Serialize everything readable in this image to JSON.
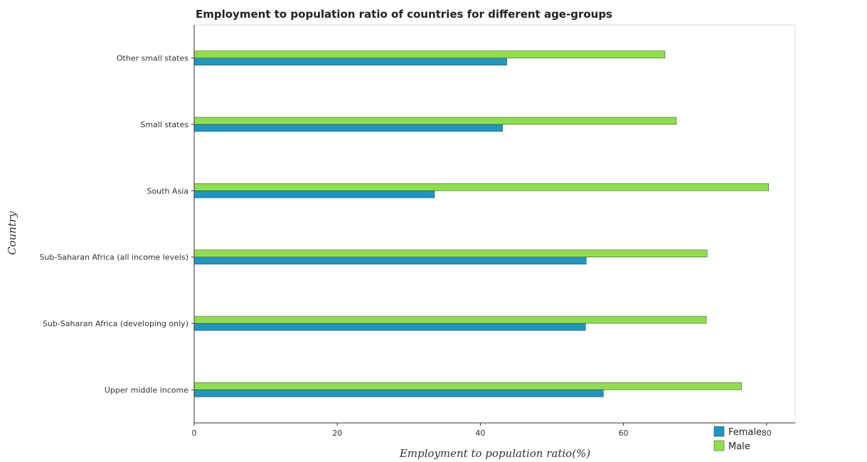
{
  "chart_data": {
    "type": "bar",
    "orientation": "horizontal",
    "title": "Employment to population ratio of countries for different age-groups",
    "xlabel": "Employment to population ratio(%)",
    "ylabel": "Country",
    "xlim": [
      0,
      84
    ],
    "xticks": [
      0,
      20,
      40,
      60,
      80
    ],
    "categories": [
      "Other small states",
      "Small states",
      "South Asia",
      "Sub-Saharan Africa (all income levels)",
      "Sub-Saharan Africa (developing only)",
      "Upper middle income"
    ],
    "series": [
      {
        "name": "Female",
        "color": "#1f96c4",
        "values": [
          43.7,
          43.1,
          33.6,
          54.8,
          54.7,
          57.2
        ]
      },
      {
        "name": "Male",
        "color": "#8fdf4a",
        "values": [
          65.8,
          67.4,
          80.3,
          71.7,
          71.6,
          76.5
        ]
      }
    ],
    "legend_position": "bottom-right",
    "grid": false
  }
}
